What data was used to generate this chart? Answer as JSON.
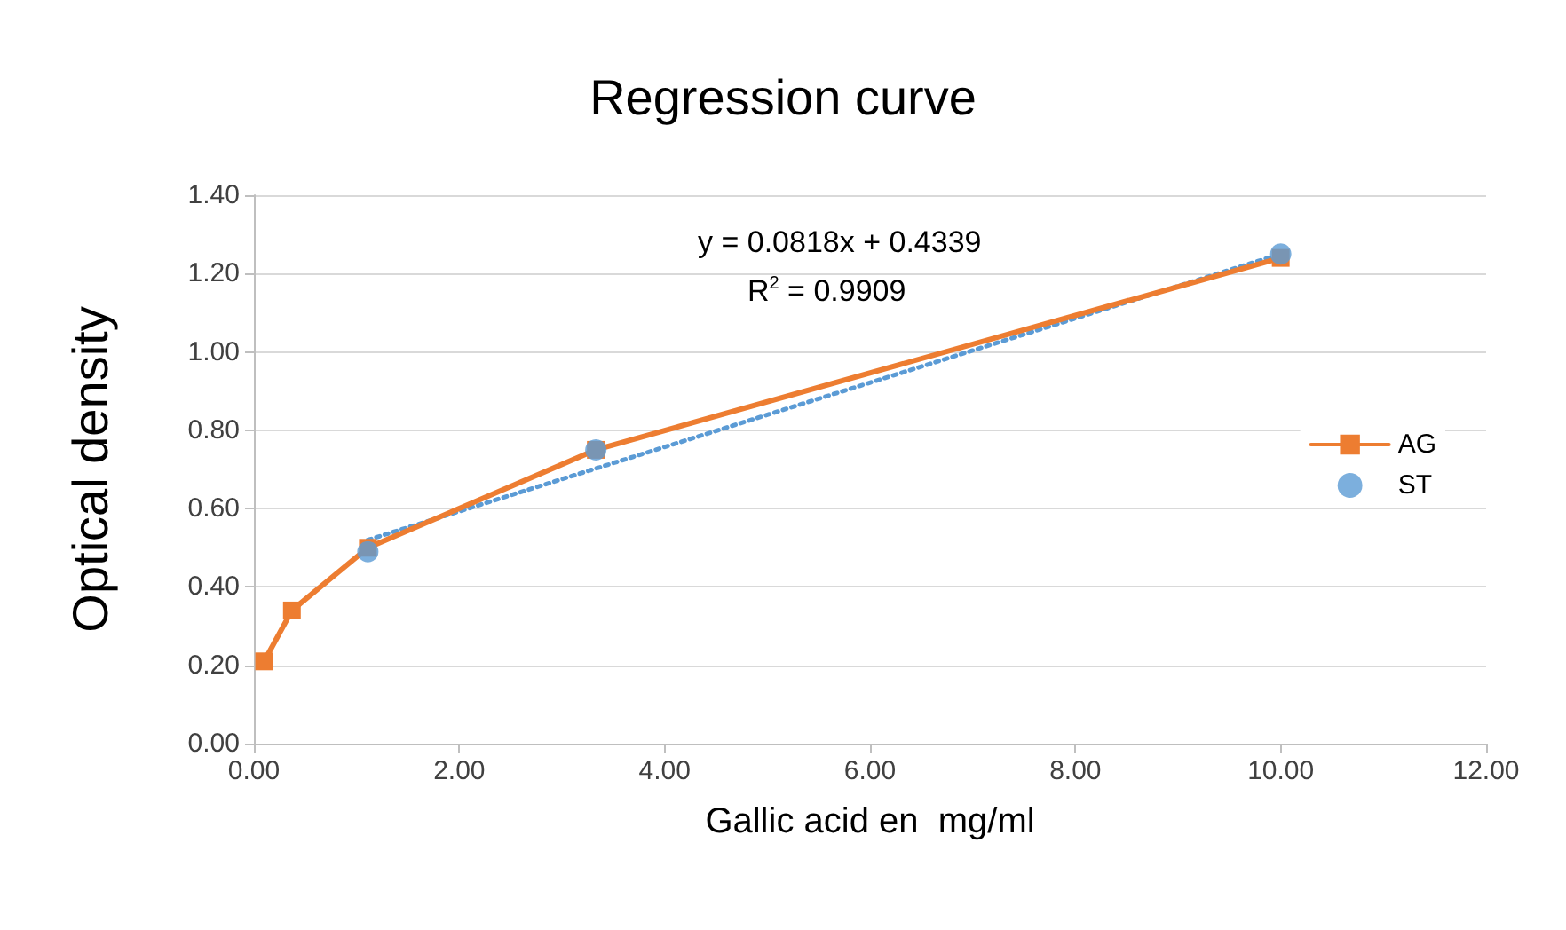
{
  "chart_data": {
    "type": "line",
    "title": "Regression curve",
    "xlabel": "Gallic acid en  mg/ml",
    "ylabel": "Optical density",
    "xlim": [
      0,
      12
    ],
    "xticks": [
      {
        "value": 0,
        "label": "0.00"
      },
      {
        "value": 2,
        "label": "2.00"
      },
      {
        "value": 4,
        "label": "4.00"
      },
      {
        "value": 6,
        "label": "6.00"
      },
      {
        "value": 8,
        "label": "8.00"
      },
      {
        "value": 10,
        "label": "10.00"
      },
      {
        "value": 12,
        "label": "12.00"
      }
    ],
    "ylim": [
      0,
      1.4
    ],
    "yticks": [
      {
        "value": 0,
        "label": "0.00"
      },
      {
        "value": 0.2,
        "label": "0.20"
      },
      {
        "value": 0.4,
        "label": "0.40"
      },
      {
        "value": 0.6,
        "label": "0.60"
      },
      {
        "value": 0.8,
        "label": "0.80"
      },
      {
        "value": 1,
        "label": "1.00"
      },
      {
        "value": 1.2,
        "label": "1.20"
      },
      {
        "value": 1.4,
        "label": "1.40"
      }
    ],
    "grid": "y",
    "legend": "right",
    "annotations": [
      "y = 0.0818x + 0.4339",
      "R$^{2}$ = 0.9909"
    ],
    "series": [
      {
        "name": "AG",
        "color": "#ed7d31",
        "marker": "square",
        "line_style": "solid",
        "x": [
          0.1,
          0.37,
          1.11,
          3.33,
          10
        ],
        "values": [
          0.21,
          0.34,
          0.5,
          0.75,
          1.24
        ]
      },
      {
        "color": "#5b9bd5",
        "marker": "none",
        "line_style": "dotted",
        "x": [
          1.11,
          10
        ],
        "values": [
          0.52,
          1.25
        ]
      },
      {
        "name": "ST",
        "type": "scatter",
        "color": "#5b9bd5",
        "marker": "circle",
        "x": [
          1.11,
          3.33,
          10
        ],
        "values": [
          0.49,
          0.75,
          1.25
        ]
      }
    ]
  }
}
